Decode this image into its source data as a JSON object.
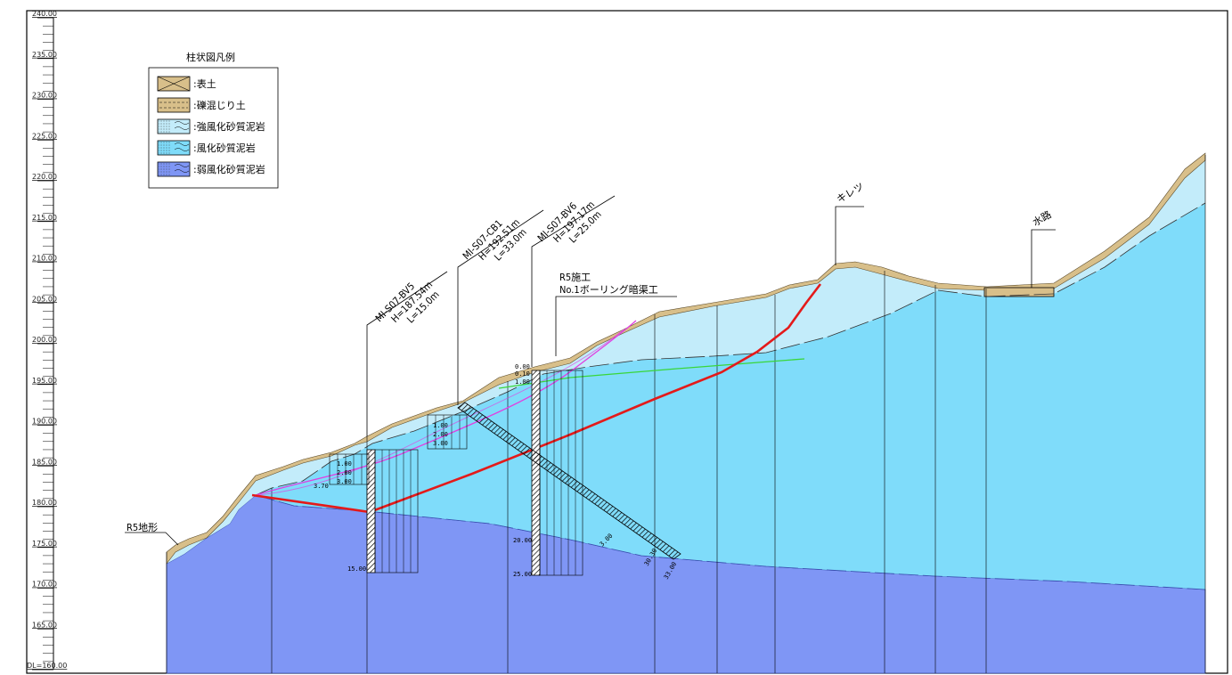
{
  "elevation_axis": {
    "ticks": [
      "240.00",
      "235.00",
      "230.00",
      "225.00",
      "220.00",
      "215.00",
      "210.00",
      "205.00",
      "200.00",
      "195.00",
      "190.00",
      "185.00",
      "180.00",
      "175.00",
      "170.00",
      "165.00"
    ],
    "datum_label": "DL=160.00"
  },
  "legend": {
    "title": "柱状図凡例",
    "items": [
      {
        "label": ":表土",
        "color": "#d8bf8a"
      },
      {
        "label": ":礫混じり土",
        "color": "#d8bf8a"
      },
      {
        "label": ":強風化砂質泥岩",
        "color": "#c3ecfa"
      },
      {
        "label": ":風化砂質泥岩",
        "color": "#7fdcfa"
      },
      {
        "label": ":弱風化砂質泥岩",
        "color": "#7f96f5"
      }
    ]
  },
  "colors": {
    "topsoil": "#d8bf8a",
    "strongly_weathered": "#c3ecfa",
    "weathered": "#7fdcfa",
    "weakly_weathered": "#7f96f5",
    "slip_surface": "#e41a1a",
    "magenta_line": "#e040e0",
    "green_line": "#39d639"
  },
  "boreholes": {
    "bv5": {
      "id": "MI-S07-BV5",
      "elev": "H=187.54m",
      "length": "L=15.0m"
    },
    "cb1": {
      "id": "MI-S07-CB1",
      "elev": "H=192.51m",
      "length": "L=33.0m"
    },
    "bv6": {
      "id": "MI-S07-BV6",
      "elev": "H=197.17m",
      "length": "L=25.0m"
    }
  },
  "annotations": {
    "r5_drain_line1": "R5施工",
    "r5_drain_line2": "No.1ボーリング暗渠工",
    "crack": "キレツ",
    "waterway": "水路",
    "r5_terrain": "R5地形"
  },
  "depth_labels": {
    "bv5": [
      "1.00",
      "2.00",
      "3.00",
      "3.70",
      "15.00"
    ],
    "cb1": [
      "1.00",
      "2.00",
      "3.00"
    ],
    "bv6": [
      "0.00",
      "0.10",
      "1.00",
      "20.00",
      "25.00"
    ],
    "inclined": [
      "3.00",
      "30.30",
      "33.00"
    ]
  }
}
